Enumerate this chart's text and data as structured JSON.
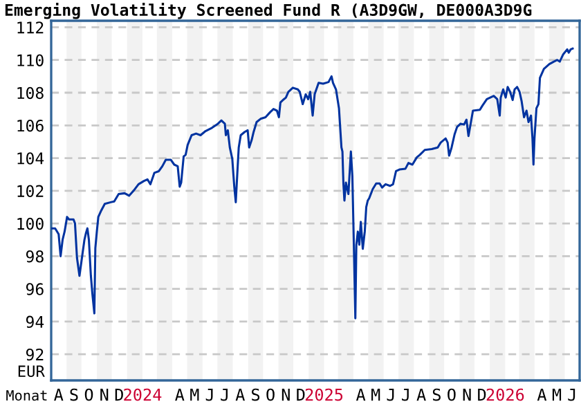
{
  "chart_data": {
    "type": "line",
    "title": "Emerging Volatility Screened Fund R (A3D9GW, DE000A3D9G",
    "xlabel": "Monat",
    "ylabel": "EUR",
    "x": [
      "2023-08-03",
      "2023-08-09",
      "2023-08-16",
      "2023-08-20",
      "2023-08-24",
      "2023-08-28",
      "2023-09-02",
      "2023-09-06",
      "2023-09-15",
      "2023-09-18",
      "2023-09-22",
      "2023-09-27",
      "2023-10-02",
      "2023-10-07",
      "2023-10-10",
      "2023-10-13",
      "2023-10-16",
      "2023-10-20",
      "2023-10-23",
      "2023-10-27",
      "2023-10-29",
      "2023-11-01",
      "2023-11-04",
      "2023-11-10",
      "2023-11-17",
      "2023-11-29",
      "2023-12-06",
      "2023-12-15",
      "2023-12-27",
      "2024-01-05",
      "2024-01-14",
      "2024-01-24",
      "2024-02-04",
      "2024-02-11",
      "2024-02-17",
      "2024-02-25",
      "2024-03-05",
      "2024-03-12",
      "2024-03-19",
      "2024-03-29",
      "2024-04-05",
      "2024-04-12",
      "2024-04-16",
      "2024-04-19",
      "2024-04-24",
      "2024-04-28",
      "2024-05-02",
      "2024-05-10",
      "2024-05-19",
      "2024-05-28",
      "2024-06-07",
      "2024-06-20",
      "2024-07-02",
      "2024-07-09",
      "2024-07-16",
      "2024-07-18",
      "2024-07-22",
      "2024-07-26",
      "2024-07-31",
      "2024-08-04",
      "2024-08-07",
      "2024-08-10",
      "2024-08-13",
      "2024-08-17",
      "2024-08-25",
      "2024-08-31",
      "2024-09-03",
      "2024-09-08",
      "2024-09-12",
      "2024-09-18",
      "2024-09-26",
      "2024-10-06",
      "2024-10-15",
      "2024-10-22",
      "2024-10-29",
      "2024-11-02",
      "2024-11-05",
      "2024-11-12",
      "2024-11-16",
      "2024-11-21",
      "2024-11-30",
      "2024-12-10",
      "2024-12-14",
      "2024-12-20",
      "2024-12-26",
      "2024-12-31",
      "2025-01-04",
      "2025-01-09",
      "2025-01-13",
      "2025-01-21",
      "2025-01-30",
      "2025-02-10",
      "2025-02-16",
      "2025-02-19",
      "2025-02-25",
      "2025-03-03",
      "2025-03-08",
      "2025-03-10",
      "2025-03-12",
      "2025-03-14",
      "2025-03-17",
      "2025-03-22",
      "2025-03-27",
      "2025-03-30",
      "2025-04-02",
      "2025-04-05",
      "2025-04-07",
      "2025-04-10",
      "2025-04-13",
      "2025-04-16",
      "2025-04-20",
      "2025-04-24",
      "2025-04-27",
      "2025-04-30",
      "2025-05-03",
      "2025-05-10",
      "2025-05-17",
      "2025-05-24",
      "2025-05-29",
      "2025-06-05",
      "2025-06-14",
      "2025-06-20",
      "2025-06-26",
      "2025-07-03",
      "2025-07-15",
      "2025-07-21",
      "2025-07-29",
      "2025-08-07",
      "2025-08-13",
      "2025-08-23",
      "2025-09-06",
      "2025-09-18",
      "2025-09-24",
      "2025-10-04",
      "2025-10-08",
      "2025-10-11",
      "2025-10-16",
      "2025-10-22",
      "2025-10-27",
      "2025-11-03",
      "2025-11-10",
      "2025-11-15",
      "2025-11-19",
      "2025-11-24",
      "2025-11-28",
      "2025-12-12",
      "2025-12-17",
      "2025-12-26",
      "2026-01-09",
      "2026-01-16",
      "2026-01-21",
      "2026-01-23",
      "2026-01-28",
      "2026-02-02",
      "2026-02-06",
      "2026-02-11",
      "2026-02-16",
      "2026-02-20",
      "2026-02-25",
      "2026-03-02",
      "2026-03-06",
      "2026-03-11",
      "2026-03-16",
      "2026-03-20",
      "2026-03-25",
      "2026-03-28",
      "2026-03-30",
      "2026-04-01",
      "2026-04-05",
      "2026-04-09",
      "2026-04-12",
      "2026-04-20",
      "2026-05-01",
      "2026-05-10",
      "2026-05-17",
      "2026-05-22",
      "2026-05-29",
      "2026-06-06",
      "2026-06-09",
      "2026-06-13",
      "2026-06-17"
    ],
    "series": [
      {
        "color": "#0033a0",
        "values": [
          99.7,
          99.7,
          99.35,
          98.0,
          99.0,
          99.5,
          100.4,
          100.25,
          100.25,
          100.0,
          97.9,
          96.8,
          97.9,
          99.0,
          99.4,
          99.7,
          99.0,
          96.8,
          95.7,
          94.5,
          98.5,
          99.5,
          100.4,
          100.8,
          101.2,
          101.3,
          101.35,
          101.8,
          101.85,
          101.7,
          102.0,
          102.4,
          102.6,
          102.7,
          102.4,
          103.1,
          103.2,
          103.5,
          103.9,
          103.9,
          103.6,
          103.5,
          102.25,
          102.5,
          104.1,
          104.2,
          104.8,
          105.4,
          105.5,
          105.4,
          105.65,
          105.85,
          106.1,
          106.3,
          106.1,
          105.4,
          105.7,
          104.65,
          103.95,
          102.25,
          101.3,
          103.0,
          104.65,
          105.4,
          105.6,
          105.7,
          104.65,
          105.1,
          105.6,
          106.2,
          106.4,
          106.5,
          106.8,
          107.0,
          106.9,
          106.5,
          107.4,
          107.6,
          107.7,
          108.05,
          108.3,
          108.2,
          108.05,
          107.3,
          107.9,
          107.6,
          108.05,
          106.6,
          107.9,
          108.6,
          108.55,
          108.65,
          109.0,
          108.6,
          108.2,
          107.05,
          104.65,
          104.4,
          102.4,
          101.4,
          102.5,
          101.8,
          104.4,
          102.9,
          98.7,
          94.2,
          98.7,
          99.5,
          98.7,
          100.1,
          98.45,
          99.5,
          101.0,
          101.4,
          101.55,
          102.1,
          102.45,
          102.45,
          102.2,
          102.4,
          102.3,
          102.4,
          103.2,
          103.3,
          103.35,
          103.7,
          103.6,
          104.05,
          104.2,
          104.5,
          104.55,
          104.65,
          104.95,
          105.2,
          104.95,
          104.15,
          104.65,
          105.45,
          105.9,
          106.1,
          106.05,
          106.35,
          105.35,
          106.2,
          106.9,
          106.95,
          107.2,
          107.6,
          107.8,
          107.6,
          106.6,
          107.7,
          108.2,
          107.7,
          108.35,
          108.05,
          107.55,
          108.2,
          108.35,
          108.05,
          107.5,
          106.5,
          106.9,
          106.2,
          106.6,
          105.2,
          103.6,
          105.2,
          107.05,
          107.3,
          108.9,
          109.45,
          109.75,
          109.9,
          110.0,
          109.9,
          110.35,
          110.65,
          110.45,
          110.65,
          110.7
        ]
      }
    ],
    "xlim": [
      "2023-08-01",
      "2026-07-01"
    ],
    "xticks": [
      {
        "value": "2023-08-16",
        "label": "A"
      },
      {
        "value": "2023-09-16",
        "label": "S"
      },
      {
        "value": "2023-10-16",
        "label": "O"
      },
      {
        "value": "2023-11-16",
        "label": "N"
      },
      {
        "value": "2023-12-16",
        "label": "D"
      },
      {
        "value": "2024-02-01",
        "label": "2024"
      },
      {
        "value": "2024-04-16",
        "label": "A"
      },
      {
        "value": "2024-05-16",
        "label": "M"
      },
      {
        "value": "2024-06-16",
        "label": "J"
      },
      {
        "value": "2024-07-16",
        "label": "J"
      },
      {
        "value": "2024-08-16",
        "label": "A"
      },
      {
        "value": "2024-09-16",
        "label": "S"
      },
      {
        "value": "2024-10-16",
        "label": "O"
      },
      {
        "value": "2024-11-16",
        "label": "N"
      },
      {
        "value": "2024-12-16",
        "label": "D"
      },
      {
        "value": "2025-02-01",
        "label": "2025"
      },
      {
        "value": "2025-04-16",
        "label": "A"
      },
      {
        "value": "2025-05-16",
        "label": "M"
      },
      {
        "value": "2025-06-16",
        "label": "J"
      },
      {
        "value": "2025-07-16",
        "label": "J"
      },
      {
        "value": "2025-08-16",
        "label": "A"
      },
      {
        "value": "2025-09-16",
        "label": "S"
      },
      {
        "value": "2025-10-16",
        "label": "O"
      },
      {
        "value": "2025-11-16",
        "label": "N"
      },
      {
        "value": "2025-12-16",
        "label": "D"
      },
      {
        "value": "2026-02-01",
        "label": "2026"
      },
      {
        "value": "2026-04-16",
        "label": "A"
      },
      {
        "value": "2026-05-16",
        "label": "M"
      },
      {
        "value": "2026-06-16",
        "label": "J"
      }
    ],
    "ylim": [
      90.4,
      112.4
    ],
    "yticks": [
      92,
      94,
      96,
      98,
      100,
      102,
      104,
      106,
      108,
      110,
      112
    ],
    "bands": [
      {
        "axis": "x",
        "from": "2023-09-01",
        "to": "2023-10-01",
        "color": "#f2f2f2"
      },
      {
        "axis": "x",
        "from": "2023-11-01",
        "to": "2023-12-01",
        "color": "#f2f2f2"
      },
      {
        "axis": "x",
        "from": "2024-01-01",
        "to": "2024-02-01",
        "color": "#f2f2f2"
      },
      {
        "axis": "x",
        "from": "2024-03-01",
        "to": "2024-04-01",
        "color": "#f2f2f2"
      },
      {
        "axis": "x",
        "from": "2024-05-01",
        "to": "2024-06-01",
        "color": "#f2f2f2"
      },
      {
        "axis": "x",
        "from": "2024-07-01",
        "to": "2024-08-01",
        "color": "#f2f2f2"
      },
      {
        "axis": "x",
        "from": "2024-09-01",
        "to": "2024-10-01",
        "color": "#f2f2f2"
      },
      {
        "axis": "x",
        "from": "2024-11-01",
        "to": "2024-12-01",
        "color": "#f2f2f2"
      },
      {
        "axis": "x",
        "from": "2025-01-01",
        "to": "2025-02-01",
        "color": "#f2f2f2"
      },
      {
        "axis": "x",
        "from": "2025-03-01",
        "to": "2025-04-01",
        "color": "#f2f2f2"
      },
      {
        "axis": "x",
        "from": "2025-05-01",
        "to": "2025-06-01",
        "color": "#f2f2f2"
      },
      {
        "axis": "x",
        "from": "2025-07-01",
        "to": "2025-08-01",
        "color": "#f2f2f2"
      },
      {
        "axis": "x",
        "from": "2025-09-01",
        "to": "2025-10-01",
        "color": "#f2f2f2"
      },
      {
        "axis": "x",
        "from": "2025-11-01",
        "to": "2025-12-01",
        "color": "#f2f2f2"
      },
      {
        "axis": "x",
        "from": "2026-01-01",
        "to": "2026-02-01",
        "color": "#f2f2f2"
      },
      {
        "axis": "x",
        "from": "2026-03-01",
        "to": "2026-04-01",
        "color": "#f2f2f2"
      },
      {
        "axis": "x",
        "from": "2026-05-01",
        "to": "2026-06-01",
        "color": "#f2f2f2"
      }
    ],
    "grid": "y",
    "line_style": "solid",
    "legend": false
  }
}
